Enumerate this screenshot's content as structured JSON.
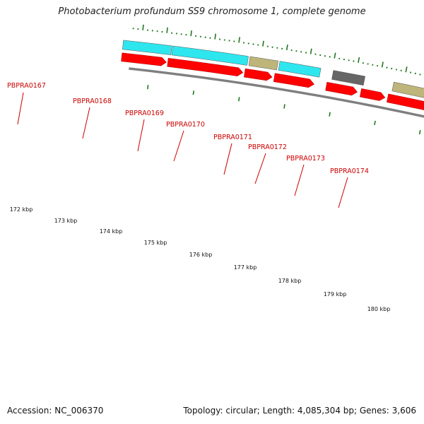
{
  "title": "Photobacterium profundum SS9 chromosome 1, complete genome",
  "accession": "Accession: NC_006370",
  "summary": "Topology: circular; Length: 4,085,304 bp; Genes: 3,606",
  "colors": {
    "label": "#cc0000",
    "cds": "#ff0000",
    "tick": "#227722",
    "backbone": "#7f7f7f",
    "cyan": "#2ee6ee",
    "khaki": "#bdb57a",
    "gray": "#666666",
    "green": "#2fe89b"
  },
  "genes": [
    {
      "name": "PBPRA0167"
    },
    {
      "name": "PBPRA0168"
    },
    {
      "name": "PBPRA0169"
    },
    {
      "name": "PBPRA0170"
    },
    {
      "name": "PBPRA0171"
    },
    {
      "name": "PBPRA0172"
    },
    {
      "name": "PBPRA0173"
    },
    {
      "name": "PBPRA0174"
    }
  ],
  "kbp_labels": [
    "172 kbp",
    "173 kbp",
    "174 kbp",
    "175 kbp",
    "176 kbp",
    "177 kbp",
    "178 kbp",
    "179 kbp",
    "180 kbp"
  ]
}
